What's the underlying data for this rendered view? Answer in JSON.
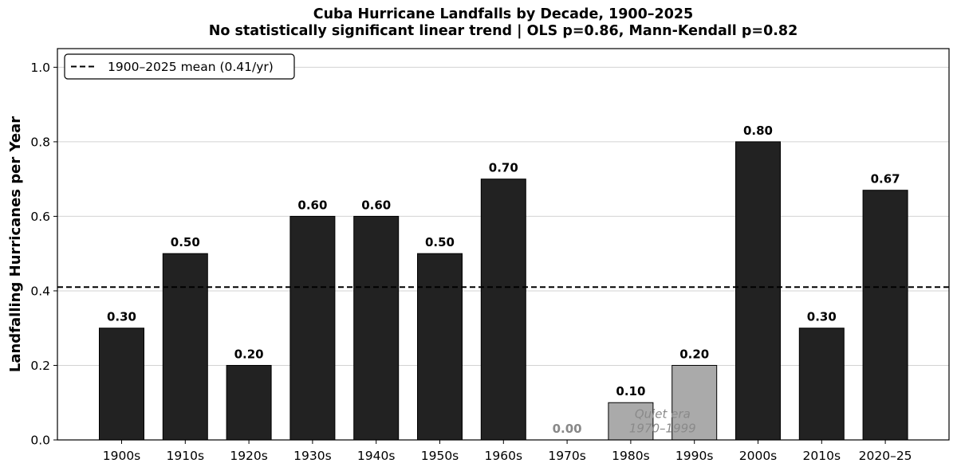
{
  "chart_data": {
    "type": "bar",
    "title": "Cuba Hurricane Landfalls by Decade, 1900–2025",
    "subtitle": "No statistically significant linear trend  |  OLS p=0.86, Mann-Kendall p=0.82",
    "xlabel": "",
    "ylabel": "Landfalling Hurricanes per Year",
    "ylim": [
      0,
      1.05
    ],
    "yticks": [
      0.0,
      0.2,
      0.4,
      0.6,
      0.8,
      1.0
    ],
    "ytick_labels": [
      "0.0",
      "0.2",
      "0.4",
      "0.6",
      "0.8",
      "1.0"
    ],
    "grid": "horizontal",
    "categories": [
      "1900s",
      "1910s",
      "1920s",
      "1930s",
      "1940s",
      "1950s",
      "1960s",
      "1970s",
      "1980s",
      "1990s",
      "2000s",
      "2010s",
      "2020–25"
    ],
    "values": [
      0.3,
      0.5,
      0.2,
      0.6,
      0.6,
      0.5,
      0.7,
      0.0,
      0.1,
      0.2,
      0.8,
      0.3,
      0.67
    ],
    "value_labels": [
      "0.30",
      "0.50",
      "0.20",
      "0.60",
      "0.60",
      "0.50",
      "0.70",
      "0.00",
      "0.10",
      "0.20",
      "0.80",
      "0.30",
      "0.67"
    ],
    "highlighted": [
      false,
      false,
      false,
      false,
      false,
      false,
      false,
      true,
      true,
      true,
      false,
      false,
      false
    ],
    "colors": {
      "bar": "#222222",
      "highlight_bar": "#aaaaaa",
      "highlight_label": "#888888",
      "grid": "#d3d3d3",
      "mean_line": "#000000"
    },
    "reference_line": {
      "value": 0.41,
      "style": "dashed",
      "label": "1900–2025 mean (0.41/yr)"
    },
    "legend": {
      "position": "top-left"
    },
    "annotation": {
      "lines": [
        "Quiet era",
        "1970–1999"
      ],
      "x_category_center": 8.5,
      "y_value": 0.05
    }
  }
}
